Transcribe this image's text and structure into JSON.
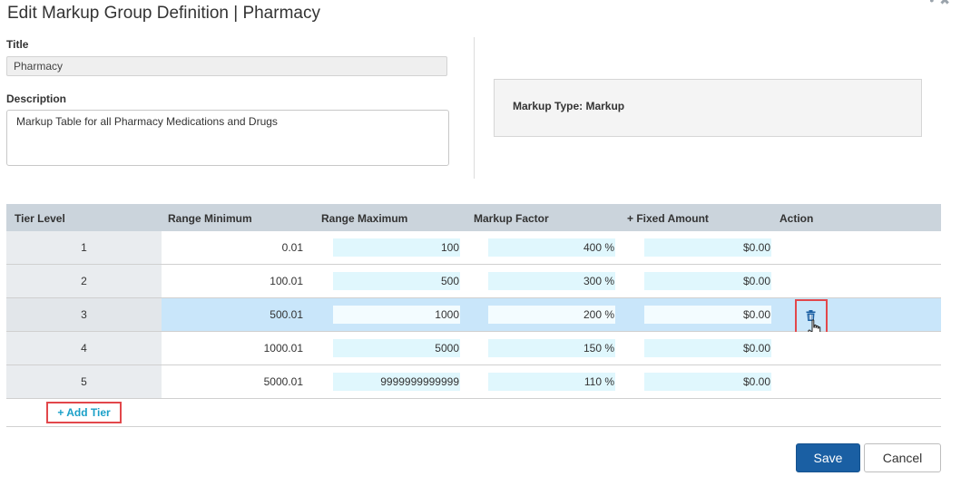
{
  "dialog": {
    "title": "Edit Markup Group Definition | Pharmacy"
  },
  "form": {
    "title_label": "Title",
    "title_value": "Pharmacy",
    "description_label": "Description",
    "description_value": "Markup Table for all Pharmacy Medications and Drugs",
    "markup_type_text": "Markup Type: Markup"
  },
  "grid": {
    "columns": [
      "Tier Level",
      "Range Minimum",
      "Range Maximum",
      "Markup Factor",
      "+ Fixed Amount",
      "Action"
    ],
    "rows": [
      {
        "tier": "1",
        "min": "0.01",
        "max": "100",
        "factor": "400 %",
        "fixed": "$0.00"
      },
      {
        "tier": "2",
        "min": "100.01",
        "max": "500",
        "factor": "300 %",
        "fixed": "$0.00"
      },
      {
        "tier": "3",
        "min": "500.01",
        "max": "1000",
        "factor": "200 %",
        "fixed": "$0.00"
      },
      {
        "tier": "4",
        "min": "1000.01",
        "max": "5000",
        "factor": "150 %",
        "fixed": "$0.00"
      },
      {
        "tier": "5",
        "min": "5000.01",
        "max": "9999999999999",
        "factor": "110 %",
        "fixed": "$0.00"
      }
    ],
    "selected_row": "3",
    "add_tier_label": "+ Add Tier"
  },
  "buttons": {
    "save": "Save",
    "cancel": "Cancel"
  },
  "colors": {
    "primary": "#1a5fa3",
    "highlight": "#e2474b",
    "selected_row": "#c9e6fa",
    "link": "#1aa0c8"
  },
  "icons": {
    "delete": "trash-icon",
    "pointer": "hand-cursor-icon"
  }
}
